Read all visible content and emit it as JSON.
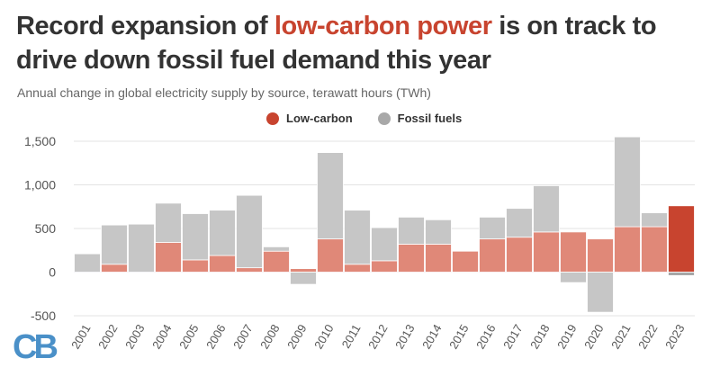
{
  "header": {
    "title_part1": "Record expansion of ",
    "title_highlight": "low-carbon power",
    "title_part2": " is on track to drive down fossil fuel demand this year",
    "subtitle": "Annual change in global electricity supply by source, terawatt hours (TWh)"
  },
  "legend": {
    "items": [
      {
        "label": "Low-carbon",
        "color": "#c8442f"
      },
      {
        "label": "Fossil fuels",
        "color": "#a8a8a8"
      }
    ]
  },
  "logo": {
    "text": "CB",
    "color": "#4a90c8"
  },
  "colors": {
    "low_carbon": "#e08878",
    "low_carbon_highlight": "#c8442f",
    "fossil": "#c6c6c6",
    "fossil_highlight": "#a6a6a6",
    "grid": "#e3e3e3",
    "zero_line": "#cfd3e6"
  },
  "chart_data": {
    "type": "bar",
    "stacked": true,
    "title": "",
    "xlabel": "",
    "ylabel": "",
    "ylim": [
      -500,
      1500
    ],
    "yticks": [
      -500,
      0,
      500,
      1000,
      1500
    ],
    "ytick_labels": [
      "-500",
      "0",
      "500",
      "1,000",
      "1,500"
    ],
    "grid": true,
    "legend_position": "top-center",
    "categories": [
      "2001",
      "2002",
      "2003",
      "2004",
      "2005",
      "2006",
      "2007",
      "2008",
      "2009",
      "2010",
      "2011",
      "2012",
      "2013",
      "2014",
      "2015",
      "2016",
      "2017",
      "2018",
      "2019",
      "2020",
      "2021",
      "2022",
      "2023"
    ],
    "highlight_category": "2023",
    "series": [
      {
        "name": "Low-carbon",
        "values": [
          0,
          90,
          0,
          340,
          140,
          190,
          50,
          240,
          40,
          380,
          90,
          130,
          320,
          320,
          240,
          380,
          400,
          460,
          460,
          380,
          520,
          520,
          760
        ]
      },
      {
        "name": "Fossil fuels",
        "values": [
          210,
          450,
          550,
          450,
          530,
          520,
          830,
          50,
          -140,
          990,
          620,
          380,
          310,
          280,
          -10,
          250,
          330,
          530,
          -120,
          -460,
          1030,
          160,
          -40
        ]
      }
    ]
  }
}
